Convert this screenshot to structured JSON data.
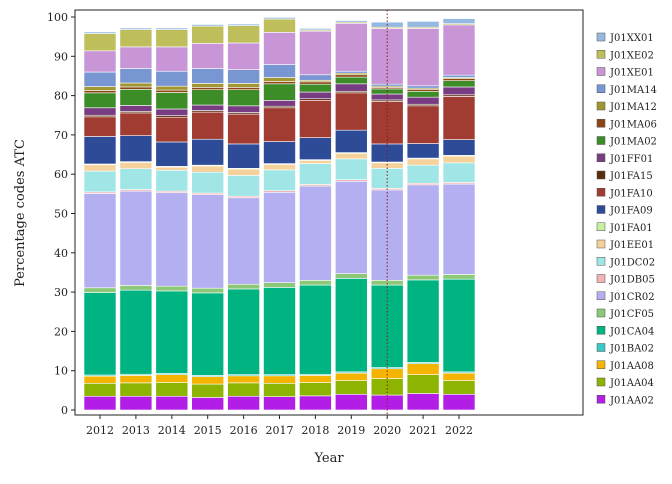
{
  "chart_data": {
    "type": "bar",
    "stacked": true,
    "xlabel": "Year",
    "ylabel": "Percentage codes ATC",
    "ylim": [
      0,
      100
    ],
    "yticks": [
      0,
      10,
      20,
      30,
      40,
      50,
      60,
      70,
      80,
      90,
      100
    ],
    "categories": [
      "2012",
      "2013",
      "2014",
      "2015",
      "2016",
      "2017",
      "2018",
      "2019",
      "2020",
      "2021",
      "2022"
    ],
    "reference_line": {
      "x": "2020",
      "style": "dotted",
      "color": "#8b1a1a"
    },
    "legend_position": "right",
    "series": [
      {
        "name": "J01AA02",
        "color": "#b31ee6",
        "values": [
          3.5,
          3.5,
          3.5,
          3.2,
          3.5,
          3.4,
          3.6,
          4.0,
          3.8,
          4.2,
          4.0
        ]
      },
      {
        "name": "J01AA04",
        "color": "#8cb400",
        "values": [
          3.3,
          3.4,
          3.5,
          3.4,
          3.4,
          3.4,
          3.4,
          3.5,
          4.2,
          4.8,
          3.5
        ]
      },
      {
        "name": "J01AA08",
        "color": "#f5b400",
        "values": [
          1.8,
          1.9,
          2.0,
          1.9,
          1.8,
          1.9,
          1.8,
          1.9,
          2.5,
          2.8,
          1.9
        ]
      },
      {
        "name": "J01BA02",
        "color": "#3cc8c8",
        "values": [
          0.3,
          0.3,
          0.3,
          0.3,
          0.3,
          0.3,
          0.3,
          0.3,
          0.3,
          0.3,
          0.3
        ]
      },
      {
        "name": "J01CA04",
        "color": "#00b482",
        "values": [
          21.0,
          21.4,
          21.0,
          21.0,
          21.8,
          22.2,
          22.7,
          23.8,
          21.0,
          21.0,
          23.6
        ]
      },
      {
        "name": "J01CF05",
        "color": "#8cc878",
        "values": [
          1.2,
          1.2,
          1.2,
          1.2,
          1.2,
          1.2,
          1.2,
          1.2,
          1.2,
          1.2,
          1.2
        ]
      },
      {
        "name": "J01CR02",
        "color": "#b4aff0",
        "values": [
          24.0,
          24.0,
          23.8,
          23.8,
          22.0,
          23.0,
          24.0,
          23.5,
          23.0,
          23.0,
          23.0
        ]
      },
      {
        "name": "J01DB05",
        "color": "#f0b4b4",
        "values": [
          0.4,
          0.4,
          0.4,
          0.4,
          0.4,
          0.4,
          0.4,
          0.4,
          0.4,
          0.4,
          0.4
        ]
      },
      {
        "name": "J01DC02",
        "color": "#a0e6e6",
        "values": [
          5.3,
          5.3,
          5.3,
          5.3,
          5.3,
          5.3,
          5.3,
          5.3,
          5.1,
          4.6,
          5.0
        ]
      },
      {
        "name": "J01EE01",
        "color": "#f5d29b",
        "values": [
          1.6,
          1.6,
          0.8,
          1.6,
          1.6,
          1.4,
          0.8,
          1.4,
          1.4,
          1.6,
          1.7
        ]
      },
      {
        "name": "J01FA01",
        "color": "#c8f0a0",
        "values": [
          0.2,
          0.2,
          0.2,
          0.2,
          0.2,
          0.2,
          0.2,
          0.2,
          0.2,
          0.2,
          0.2
        ]
      },
      {
        "name": "J01FA09",
        "color": "#2d4b96",
        "values": [
          7.0,
          6.6,
          6.2,
          6.6,
          6.2,
          5.6,
          5.6,
          5.7,
          4.6,
          3.7,
          4.0
        ]
      },
      {
        "name": "J01FA10",
        "color": "#a03c32",
        "values": [
          5.0,
          5.8,
          6.3,
          6.9,
          7.6,
          8.6,
          9.5,
          9.5,
          10.8,
          9.6,
          11.0
        ]
      },
      {
        "name": "J01FA15",
        "color": "#5a2d0f",
        "values": [
          0.4,
          0.4,
          0.4,
          0.4,
          0.4,
          0.4,
          0.4,
          0.4,
          0.4,
          0.4,
          0.4
        ]
      },
      {
        "name": "J01FF01",
        "color": "#783c82",
        "values": [
          1.9,
          1.5,
          1.7,
          1.4,
          1.7,
          1.5,
          1.7,
          1.9,
          1.5,
          1.8,
          2.0
        ]
      },
      {
        "name": "J01MA02",
        "color": "#3c8c28",
        "values": [
          3.8,
          4.1,
          4.2,
          3.9,
          4.1,
          4.2,
          2.0,
          1.7,
          1.3,
          1.5,
          1.6
        ]
      },
      {
        "name": "J01MA06",
        "color": "#8c4614",
        "values": [
          0.6,
          0.6,
          0.6,
          0.6,
          0.6,
          0.6,
          0.6,
          0.6,
          0.4,
          0.5,
          0.5
        ]
      },
      {
        "name": "J01MA12",
        "color": "#a09632",
        "values": [
          1.0,
          1.0,
          1.0,
          1.0,
          1.0,
          1.0,
          0.4,
          0.4,
          0.3,
          0.3,
          0.3
        ]
      },
      {
        "name": "J01MA14",
        "color": "#7896d2",
        "values": [
          3.7,
          3.7,
          3.8,
          3.8,
          3.5,
          3.3,
          1.4,
          0.5,
          0.5,
          0.6,
          0.6
        ]
      },
      {
        "name": "J01XE01",
        "color": "#c896d7",
        "values": [
          5.4,
          5.5,
          6.2,
          6.4,
          6.8,
          8.2,
          11.1,
          12.2,
          14.2,
          14.6,
          12.8
        ]
      },
      {
        "name": "J01XE02",
        "color": "#bebe5a",
        "values": [
          4.4,
          4.4,
          4.4,
          4.4,
          4.4,
          3.4,
          0.3,
          0.3,
          0.3,
          0.3,
          0.3
        ]
      },
      {
        "name": "J01XX01",
        "color": "#96b9e1",
        "values": [
          0.4,
          0.4,
          0.4,
          0.4,
          0.4,
          0.4,
          0.4,
          0.4,
          1.3,
          1.5,
          1.3
        ]
      }
    ]
  }
}
